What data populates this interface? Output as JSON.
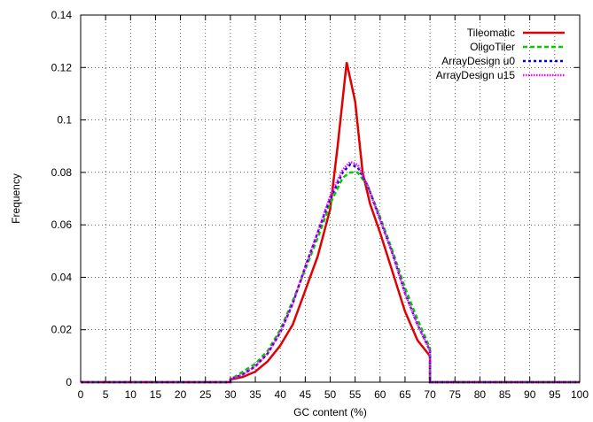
{
  "chart_data": {
    "type": "line",
    "title": "",
    "xlabel": "GC content (%)",
    "ylabel": "Frequency",
    "xlim": [
      0,
      100
    ],
    "ylim": [
      0,
      0.14
    ],
    "grid": true,
    "legend_position": "top-right",
    "x_ticks": [
      "0",
      "5",
      "10",
      "15",
      "20",
      "25",
      "30",
      "35",
      "40",
      "45",
      "50",
      "55",
      "60",
      "65",
      "70",
      "75",
      "80",
      "85",
      "90",
      "95",
      "100"
    ],
    "y_ticks": [
      "0",
      "0.02",
      "0.04",
      "0.06",
      "0.08",
      "0.1",
      "0.12",
      "0.14"
    ],
    "series": [
      {
        "name": "Tileomatic",
        "color": "#e00000",
        "dash": "solid",
        "points": [
          [
            0,
            0
          ],
          [
            30,
            0
          ],
          [
            30,
            0.001
          ],
          [
            32.5,
            0.002
          ],
          [
            35,
            0.004
          ],
          [
            37.5,
            0.008
          ],
          [
            40,
            0.014
          ],
          [
            42.5,
            0.022
          ],
          [
            45,
            0.035
          ],
          [
            47.5,
            0.048
          ],
          [
            50,
            0.066
          ],
          [
            51.5,
            0.09
          ],
          [
            53.3,
            0.122
          ],
          [
            55,
            0.107
          ],
          [
            56.5,
            0.08
          ],
          [
            58,
            0.068
          ],
          [
            60,
            0.057
          ],
          [
            62.5,
            0.042
          ],
          [
            65,
            0.027
          ],
          [
            67.5,
            0.016
          ],
          [
            70,
            0.01
          ],
          [
            70,
            0
          ],
          [
            100,
            0
          ]
        ]
      },
      {
        "name": "OligoTiler",
        "color": "#00cc00",
        "dash": "5 3",
        "points": [
          [
            0,
            0
          ],
          [
            30,
            0
          ],
          [
            30,
            0.001
          ],
          [
            32.5,
            0.004
          ],
          [
            35,
            0.007
          ],
          [
            37.5,
            0.012
          ],
          [
            40,
            0.02
          ],
          [
            42.5,
            0.031
          ],
          [
            45,
            0.043
          ],
          [
            47.5,
            0.055
          ],
          [
            50,
            0.068
          ],
          [
            52.5,
            0.078
          ],
          [
            54,
            0.08
          ],
          [
            55.5,
            0.08
          ],
          [
            57.5,
            0.075
          ],
          [
            60,
            0.063
          ],
          [
            62.5,
            0.05
          ],
          [
            65,
            0.036
          ],
          [
            67.5,
            0.024
          ],
          [
            70,
            0.013
          ],
          [
            70,
            0
          ],
          [
            100,
            0
          ]
        ]
      },
      {
        "name": "ArrayDesign u0",
        "color": "#0000dd",
        "dash": "3 3",
        "points": [
          [
            0,
            0
          ],
          [
            30,
            0
          ],
          [
            30,
            0.001
          ],
          [
            32.5,
            0.003
          ],
          [
            35,
            0.006
          ],
          [
            37.5,
            0.011
          ],
          [
            40,
            0.019
          ],
          [
            42.5,
            0.03
          ],
          [
            45,
            0.044
          ],
          [
            47.5,
            0.057
          ],
          [
            50,
            0.07
          ],
          [
            52.5,
            0.08
          ],
          [
            54,
            0.083
          ],
          [
            55.5,
            0.082
          ],
          [
            57.5,
            0.075
          ],
          [
            60,
            0.062
          ],
          [
            62.5,
            0.049
          ],
          [
            65,
            0.034
          ],
          [
            67.5,
            0.022
          ],
          [
            70,
            0.012
          ],
          [
            70,
            0
          ],
          [
            100,
            0
          ]
        ]
      },
      {
        "name": "ArrayDesign u15",
        "color": "#ff00ff",
        "dash": "1.5 1.5",
        "points": [
          [
            0,
            0
          ],
          [
            30,
            0
          ],
          [
            30,
            0.001
          ],
          [
            32.5,
            0.003
          ],
          [
            35,
            0.006
          ],
          [
            37.5,
            0.011
          ],
          [
            40,
            0.019
          ],
          [
            42.5,
            0.03
          ],
          [
            45,
            0.044
          ],
          [
            47.5,
            0.057
          ],
          [
            50,
            0.071
          ],
          [
            52.5,
            0.081
          ],
          [
            54,
            0.084
          ],
          [
            55.5,
            0.083
          ],
          [
            57.5,
            0.075
          ],
          [
            60,
            0.062
          ],
          [
            62.5,
            0.049
          ],
          [
            65,
            0.034
          ],
          [
            67.5,
            0.022
          ],
          [
            70,
            0.012
          ],
          [
            70,
            0
          ],
          [
            100,
            0
          ]
        ]
      }
    ]
  }
}
